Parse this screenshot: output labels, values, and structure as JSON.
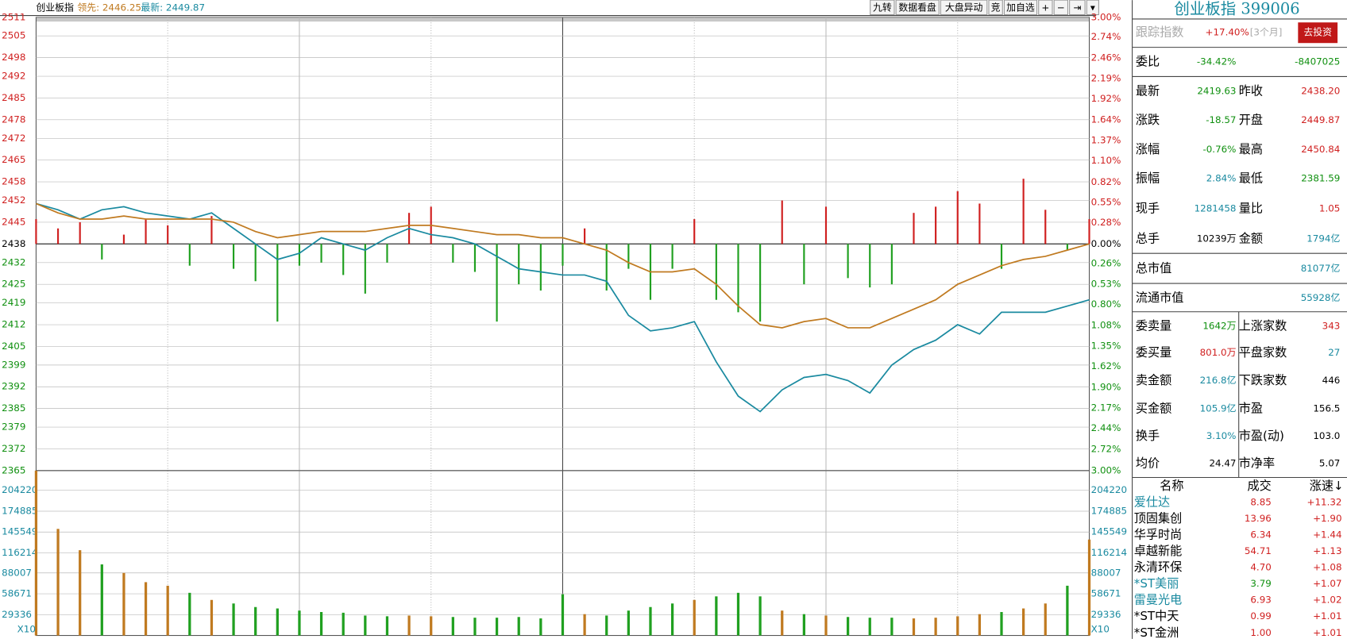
{
  "toolbar": {
    "title": "创业板指",
    "lead": "领先: 2446.25",
    "last": "最新: 2449.87",
    "buttons": [
      "九转",
      "数据看盘",
      "大盘异动",
      "竞",
      "加自选",
      "+",
      "−",
      "⇥",
      "▾"
    ]
  },
  "chart_data": [
    {
      "type": "line",
      "x": [
        0,
        5,
        10,
        15,
        20,
        25,
        30,
        35,
        40,
        45,
        50,
        55,
        60,
        65,
        70,
        75,
        80,
        85,
        90,
        95,
        100,
        105,
        110,
        115,
        120,
        125,
        130,
        135,
        140,
        145,
        150,
        155,
        160,
        165,
        170,
        175,
        180,
        185,
        190,
        195,
        200,
        205,
        210,
        215,
        220,
        225,
        230,
        235,
        240
      ],
      "xlim": [
        0,
        240
      ],
      "ylim": [
        2365,
        2511
      ],
      "yticks": [
        2511,
        2505,
        2498,
        2492,
        2485,
        2478,
        2472,
        2465,
        2458,
        2452,
        2445,
        2438,
        2432,
        2425,
        2419,
        2412,
        2405,
        2399,
        2392,
        2385,
        2379,
        2372,
        2365
      ],
      "y2lim": [
        -3,
        3
      ],
      "y2ticks": [
        {
          "value": 3,
          "label": "3.00%"
        },
        {
          "value": 2.74,
          "label": "2.74%"
        },
        {
          "value": 2.46,
          "label": "2.46%"
        },
        {
          "value": 2.19,
          "label": "2.19%"
        },
        {
          "value": 1.92,
          "label": "1.92%"
        },
        {
          "value": 1.64,
          "label": "1.64%"
        },
        {
          "value": 1.37,
          "label": "1.37%"
        },
        {
          "value": 1.1,
          "label": "1.10%"
        },
        {
          "value": 0.82,
          "label": "0.82%"
        },
        {
          "value": 0.55,
          "label": "0.55%"
        },
        {
          "value": 0.28,
          "label": "0.28%"
        },
        {
          "value": 0,
          "label": "0.00%"
        },
        {
          "value": -0.26,
          "label": "0.26%"
        },
        {
          "value": -0.53,
          "label": "0.53%"
        },
        {
          "value": -0.8,
          "label": "0.80%"
        },
        {
          "value": -1.08,
          "label": "1.08%"
        },
        {
          "value": -1.35,
          "label": "1.35%"
        },
        {
          "value": -1.62,
          "label": "1.62%"
        },
        {
          "value": -1.9,
          "label": "1.90%"
        },
        {
          "value": -2.17,
          "label": "2.17%"
        },
        {
          "value": -2.44,
          "label": "2.44%"
        },
        {
          "value": -2.72,
          "label": "2.72%"
        },
        {
          "value": -3,
          "label": "3.00%"
        }
      ],
      "grid": true,
      "series": [
        {
          "type": "line",
          "color": "#1a8aa0",
          "values": [
            2451,
            2449,
            2446,
            2449,
            2450,
            2448,
            2447,
            2446,
            2448,
            2443,
            2438,
            2433,
            2435,
            2440,
            2438,
            2436,
            2440,
            2443,
            2441,
            2440,
            2438,
            2434,
            2430,
            2429,
            2428,
            2428,
            2426,
            2415,
            2410,
            2411,
            2413,
            2400,
            2389,
            2384,
            2391,
            2395,
            2396,
            2394,
            2390,
            2399,
            2404,
            2407,
            2412,
            2409,
            2416,
            2416,
            2416,
            2418,
            2420
          ]
        },
        {
          "type": "line",
          "color": "#c07a20",
          "values": [
            2451,
            2448,
            2446,
            2446,
            2447,
            2446,
            2446,
            2446,
            2446,
            2445,
            2442,
            2440,
            2441,
            2442,
            2442,
            2442,
            2443,
            2444,
            2444,
            2443,
            2442,
            2441,
            2441,
            2440,
            2440,
            2438,
            2436,
            2432,
            2429,
            2429,
            2430,
            2425,
            2418,
            2412,
            2411,
            2413,
            2414,
            2411,
            2411,
            2414,
            2417,
            2420,
            2425,
            2428,
            2431,
            2433,
            2434,
            2436,
            2438
          ]
        },
        {
          "type": "bar",
          "up_color": "#d02020",
          "down_color": "#20a020",
          "values": [
            2446,
            2443,
            2445,
            2433,
            2441,
            2446,
            2444,
            2431,
            2447,
            2430,
            2426,
            2413,
            2431,
            2432,
            2428,
            2422,
            2432,
            2448,
            2450,
            2432,
            2429,
            2413,
            2425,
            2423,
            2431,
            2443,
            2423,
            2430,
            2420,
            2430,
            2446,
            2420,
            2416,
            2413,
            2452,
            2425,
            2450,
            2427,
            2424,
            2425,
            2448,
            2450,
            2455,
            2451,
            2430,
            2459,
            2449,
            2436,
            2446
          ]
        }
      ]
    },
    {
      "type": "bar",
      "unit_label": "X10",
      "ylim": [
        0,
        232000
      ],
      "yticks": [
        29336,
        58671,
        88007,
        116214,
        145549,
        174885,
        204220
      ],
      "up_color": "#c07a20",
      "down_color": "#20a020",
      "values": [
        232000,
        150000,
        120000,
        100000,
        88000,
        75000,
        70000,
        60000,
        50000,
        45000,
        40000,
        38000,
        35000,
        33000,
        32000,
        28000,
        27000,
        28000,
        27000,
        26000,
        25000,
        25000,
        26000,
        24000,
        58000,
        30000,
        28000,
        35000,
        40000,
        45000,
        50000,
        55000,
        60000,
        55000,
        35000,
        30000,
        28000,
        26000,
        25000,
        25000,
        24000,
        25000,
        27000,
        30000,
        33000,
        38000,
        45000,
        70000,
        135000
      ]
    }
  ],
  "quote_panel": {
    "title": "创业板指 399006",
    "track": {
      "label": "跟踪指数",
      "value": "+17.40%",
      "period": "[3个月]",
      "button": "去投资"
    },
    "rows": [
      [
        "委比",
        "-34.42%",
        "",
        "-8407025"
      ],
      [
        "最新",
        "2419.63",
        "昨收",
        "2438.20"
      ],
      [
        "涨跌",
        "-18.57",
        "开盘",
        "2449.87"
      ],
      [
        "涨幅",
        "-0.76%",
        "最高",
        "2450.84"
      ],
      [
        "振幅",
        "2.84%",
        "最低",
        "2381.59"
      ],
      [
        "现手",
        "1281458",
        "量比",
        "1.05"
      ],
      [
        "总手",
        "10239万",
        "金额",
        "1794亿"
      ],
      [
        "总市值",
        "",
        "",
        "81077亿"
      ],
      [
        "流通市值",
        "",
        "",
        "55928亿"
      ],
      [
        "委卖量",
        "1642万",
        "上涨家数",
        "343"
      ],
      [
        "委买量",
        "801.0万",
        "平盘家数",
        "27"
      ],
      [
        "卖金额",
        "216.8亿",
        "下跌家数",
        "446"
      ],
      [
        "买金额",
        "105.9亿",
        "市盈",
        "156.5"
      ],
      [
        "换手",
        "3.10%",
        "市盈(动)",
        "103.0"
      ],
      [
        "均价",
        "24.47",
        "市净率",
        "5.07"
      ]
    ],
    "list_header": [
      "名称",
      "成交",
      "涨速↓"
    ],
    "stocks": [
      [
        "爱仕达",
        "8.85",
        "+11.32"
      ],
      [
        "顶固集创",
        "13.96",
        "+1.90"
      ],
      [
        "华孚时尚",
        "6.34",
        "+1.44"
      ],
      [
        "卓越新能",
        "54.71",
        "+1.13"
      ],
      [
        "永清环保",
        "4.70",
        "+1.08"
      ],
      [
        "*ST美丽",
        "3.79",
        "+1.07"
      ],
      [
        "雷曼光电",
        "6.93",
        "+1.02"
      ],
      [
        "*ST中天",
        "0.99",
        "+1.01"
      ],
      [
        "*ST金洲",
        "1.00",
        "+1.01"
      ]
    ]
  }
}
